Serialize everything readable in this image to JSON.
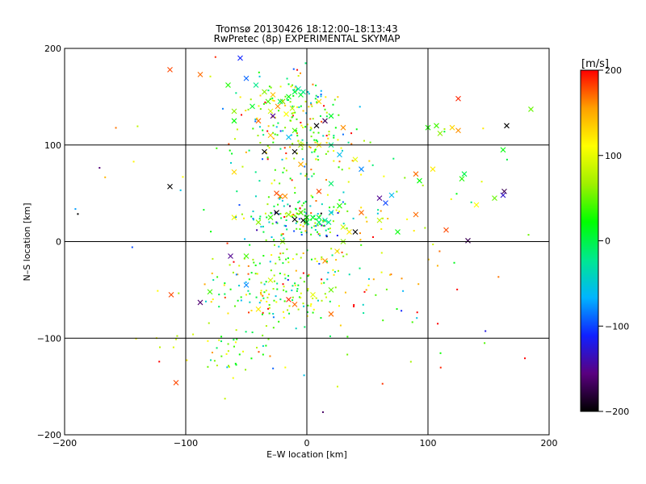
{
  "chart_data": {
    "type": "scatter",
    "title_line1": "Tromsø 20130426 18:12:00–18:13:43",
    "title_line2": "RwPretec (8p) EXPERIMENTAL SKYMAP",
    "xlabel": "E–W location [km]",
    "ylabel": "N–S location [km]",
    "xlim": [
      -200,
      200
    ],
    "ylim": [
      -200,
      200
    ],
    "x_ticks": [
      -200,
      -100,
      0,
      100,
      200
    ],
    "y_ticks": [
      -200,
      -100,
      0,
      100,
      200
    ],
    "x_tick_labels": [
      "−200",
      "−100",
      "0",
      "100",
      "200"
    ],
    "y_tick_labels": [
      "−200",
      "−100",
      "0",
      "100",
      "200"
    ],
    "grid": true,
    "colorbar": {
      "label": "[m/s]",
      "min": -200,
      "max": 200,
      "ticks": [
        200,
        100,
        0,
        -100,
        -200
      ],
      "tick_labels": [
        "200",
        "100",
        "0",
        "−100",
        "−200"
      ],
      "colors": [
        "#000000",
        "#5a0080",
        "#1020ff",
        "#00b4ff",
        "#00e890",
        "#00ff00",
        "#a0f000",
        "#ffff00",
        "#ffa000",
        "#ff0000"
      ]
    },
    "cross_points": [
      [
        -113,
        178,
        180
      ],
      [
        -88,
        173,
        170
      ],
      [
        -55,
        190,
        -110
      ],
      [
        -50,
        169,
        -90
      ],
      [
        -65,
        162,
        30
      ],
      [
        -42,
        162,
        -20
      ],
      [
        -35,
        155,
        60
      ],
      [
        -28,
        152,
        140
      ],
      [
        -32,
        145,
        40
      ],
      [
        -24,
        140,
        160
      ],
      [
        -20,
        145,
        190
      ],
      [
        -15,
        150,
        20
      ],
      [
        -10,
        155,
        0
      ],
      [
        -7,
        158,
        -30
      ],
      [
        -5,
        152,
        10
      ],
      [
        -12,
        138,
        80
      ],
      [
        -17,
        132,
        110
      ],
      [
        -28,
        130,
        -150
      ],
      [
        -40,
        125,
        170
      ],
      [
        -60,
        125,
        20
      ],
      [
        -60,
        135,
        60
      ],
      [
        -45,
        140,
        10
      ],
      [
        -30,
        135,
        90
      ],
      [
        -20,
        145,
        60
      ],
      [
        -3,
        155,
        -20
      ],
      [
        -22,
        145,
        0
      ],
      [
        10,
        145,
        130
      ],
      [
        8,
        120,
        -200
      ],
      [
        20,
        130,
        10
      ],
      [
        15,
        125,
        -170
      ],
      [
        30,
        118,
        160
      ],
      [
        -35,
        93,
        -200
      ],
      [
        -10,
        93,
        -200
      ],
      [
        -5,
        100,
        70
      ],
      [
        -15,
        108,
        -60
      ],
      [
        -10,
        115,
        40
      ],
      [
        -30,
        110,
        140
      ],
      [
        -5,
        80,
        150
      ],
      [
        10,
        100,
        120
      ],
      [
        20,
        100,
        -20
      ],
      [
        27,
        90,
        -60
      ],
      [
        40,
        85,
        100
      ],
      [
        -60,
        72,
        130
      ],
      [
        -113,
        57,
        -200
      ],
      [
        45,
        75,
        -80
      ],
      [
        20,
        60,
        -10
      ],
      [
        90,
        70,
        170
      ],
      [
        93,
        63,
        20
      ],
      [
        104,
        75,
        120
      ],
      [
        110,
        112,
        60
      ],
      [
        100,
        118,
        30
      ],
      [
        107,
        120,
        40
      ],
      [
        120,
        118,
        130
      ],
      [
        125,
        115,
        160
      ],
      [
        125,
        148,
        190
      ],
      [
        165,
        120,
        -200
      ],
      [
        162,
        95,
        20
      ],
      [
        162,
        48,
        -130
      ],
      [
        163,
        52,
        -170
      ],
      [
        155,
        45,
        50
      ],
      [
        128,
        65,
        30
      ],
      [
        130,
        70,
        0
      ],
      [
        140,
        38,
        110
      ],
      [
        185,
        137,
        50
      ],
      [
        10,
        52,
        180
      ],
      [
        -25,
        50,
        180
      ],
      [
        -22,
        47,
        170
      ],
      [
        -18,
        47,
        160
      ],
      [
        -25,
        30,
        -200
      ],
      [
        -15,
        28,
        60
      ],
      [
        -10,
        23,
        -200
      ],
      [
        -3,
        22,
        -200
      ],
      [
        0,
        20,
        0
      ],
      [
        0,
        25,
        20
      ],
      [
        5,
        25,
        10
      ],
      [
        10,
        20,
        -10
      ],
      [
        15,
        22,
        -30
      ],
      [
        20,
        30,
        -50
      ],
      [
        -5,
        30,
        40
      ],
      [
        -40,
        20,
        60
      ],
      [
        -60,
        25,
        100
      ],
      [
        -30,
        25,
        40
      ],
      [
        27,
        37,
        30
      ],
      [
        30,
        15,
        90
      ],
      [
        35,
        10,
        120
      ],
      [
        40,
        10,
        -200
      ],
      [
        45,
        30,
        170
      ],
      [
        60,
        45,
        -150
      ],
      [
        65,
        40,
        -100
      ],
      [
        70,
        48,
        -60
      ],
      [
        90,
        28,
        170
      ],
      [
        115,
        12,
        180
      ],
      [
        133,
        1,
        -170
      ],
      [
        60,
        22,
        80
      ],
      [
        75,
        10,
        20
      ],
      [
        30,
        0,
        60
      ],
      [
        18,
        20,
        -20
      ],
      [
        10,
        25,
        0
      ],
      [
        -20,
        0,
        60
      ],
      [
        -50,
        -15,
        40
      ],
      [
        -63,
        -15,
        -150
      ],
      [
        -30,
        -40,
        90
      ],
      [
        -50,
        -45,
        -80
      ],
      [
        -80,
        -52,
        40
      ],
      [
        -88,
        -63,
        -160
      ],
      [
        -112,
        -55,
        180
      ],
      [
        -15,
        -60,
        190
      ],
      [
        -10,
        -65,
        170
      ],
      [
        20,
        -75,
        170
      ],
      [
        -108,
        -146,
        180
      ],
      [
        25,
        -10,
        130
      ],
      [
        15,
        -20,
        160
      ],
      [
        5,
        -55,
        100
      ],
      [
        -40,
        -70,
        120
      ],
      [
        20,
        -50,
        50
      ]
    ],
    "dot_cloud_summary": "hundreds of small colour-coded single-pixel velocity echoes concentrated near E-W 0 km (N-S 150, 100, 25, -45 km) and scattered across the field"
  }
}
